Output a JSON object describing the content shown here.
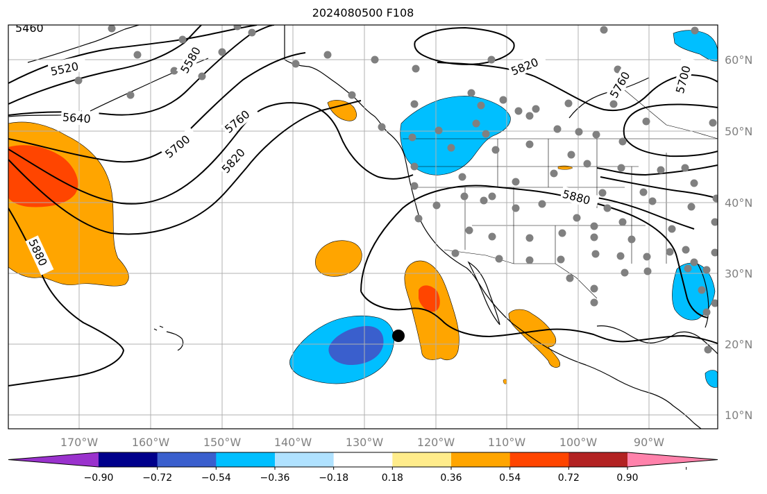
{
  "title": "2024080500 F108",
  "lon_ticks": [
    "170°W",
    "160°W",
    "150°W",
    "140°W",
    "130°W",
    "120°W",
    "110°W",
    "100°W",
    "90°W"
  ],
  "lat_ticks": [
    "60°N",
    "50°N",
    "40°N",
    "30°N",
    "20°N",
    "10°N"
  ],
  "contour_labels": [
    "5460",
    "5520",
    "5580",
    "5640",
    "5700",
    "5760",
    "5820",
    "5820",
    "5760",
    "5700",
    "5880",
    "5880"
  ],
  "colorbar": {
    "ticks": [
      "−0.90",
      "−0.72",
      "−0.54",
      "−0.36",
      "−0.18",
      "0.18",
      "0.36",
      "0.54",
      "0.72",
      "0.90"
    ],
    "colors": [
      "#9a32cd",
      "#00008b",
      "#3a5fcd",
      "#00bfff",
      "#b0e2ff",
      "#ffffff",
      "#ffec8b",
      "#ffa500",
      "#ff4500",
      "#b22222",
      "#ff82ab"
    ]
  },
  "colors": {
    "gridline": "#b0b0b0",
    "station_dot": "#808080",
    "storm_marker": "#000000"
  }
}
